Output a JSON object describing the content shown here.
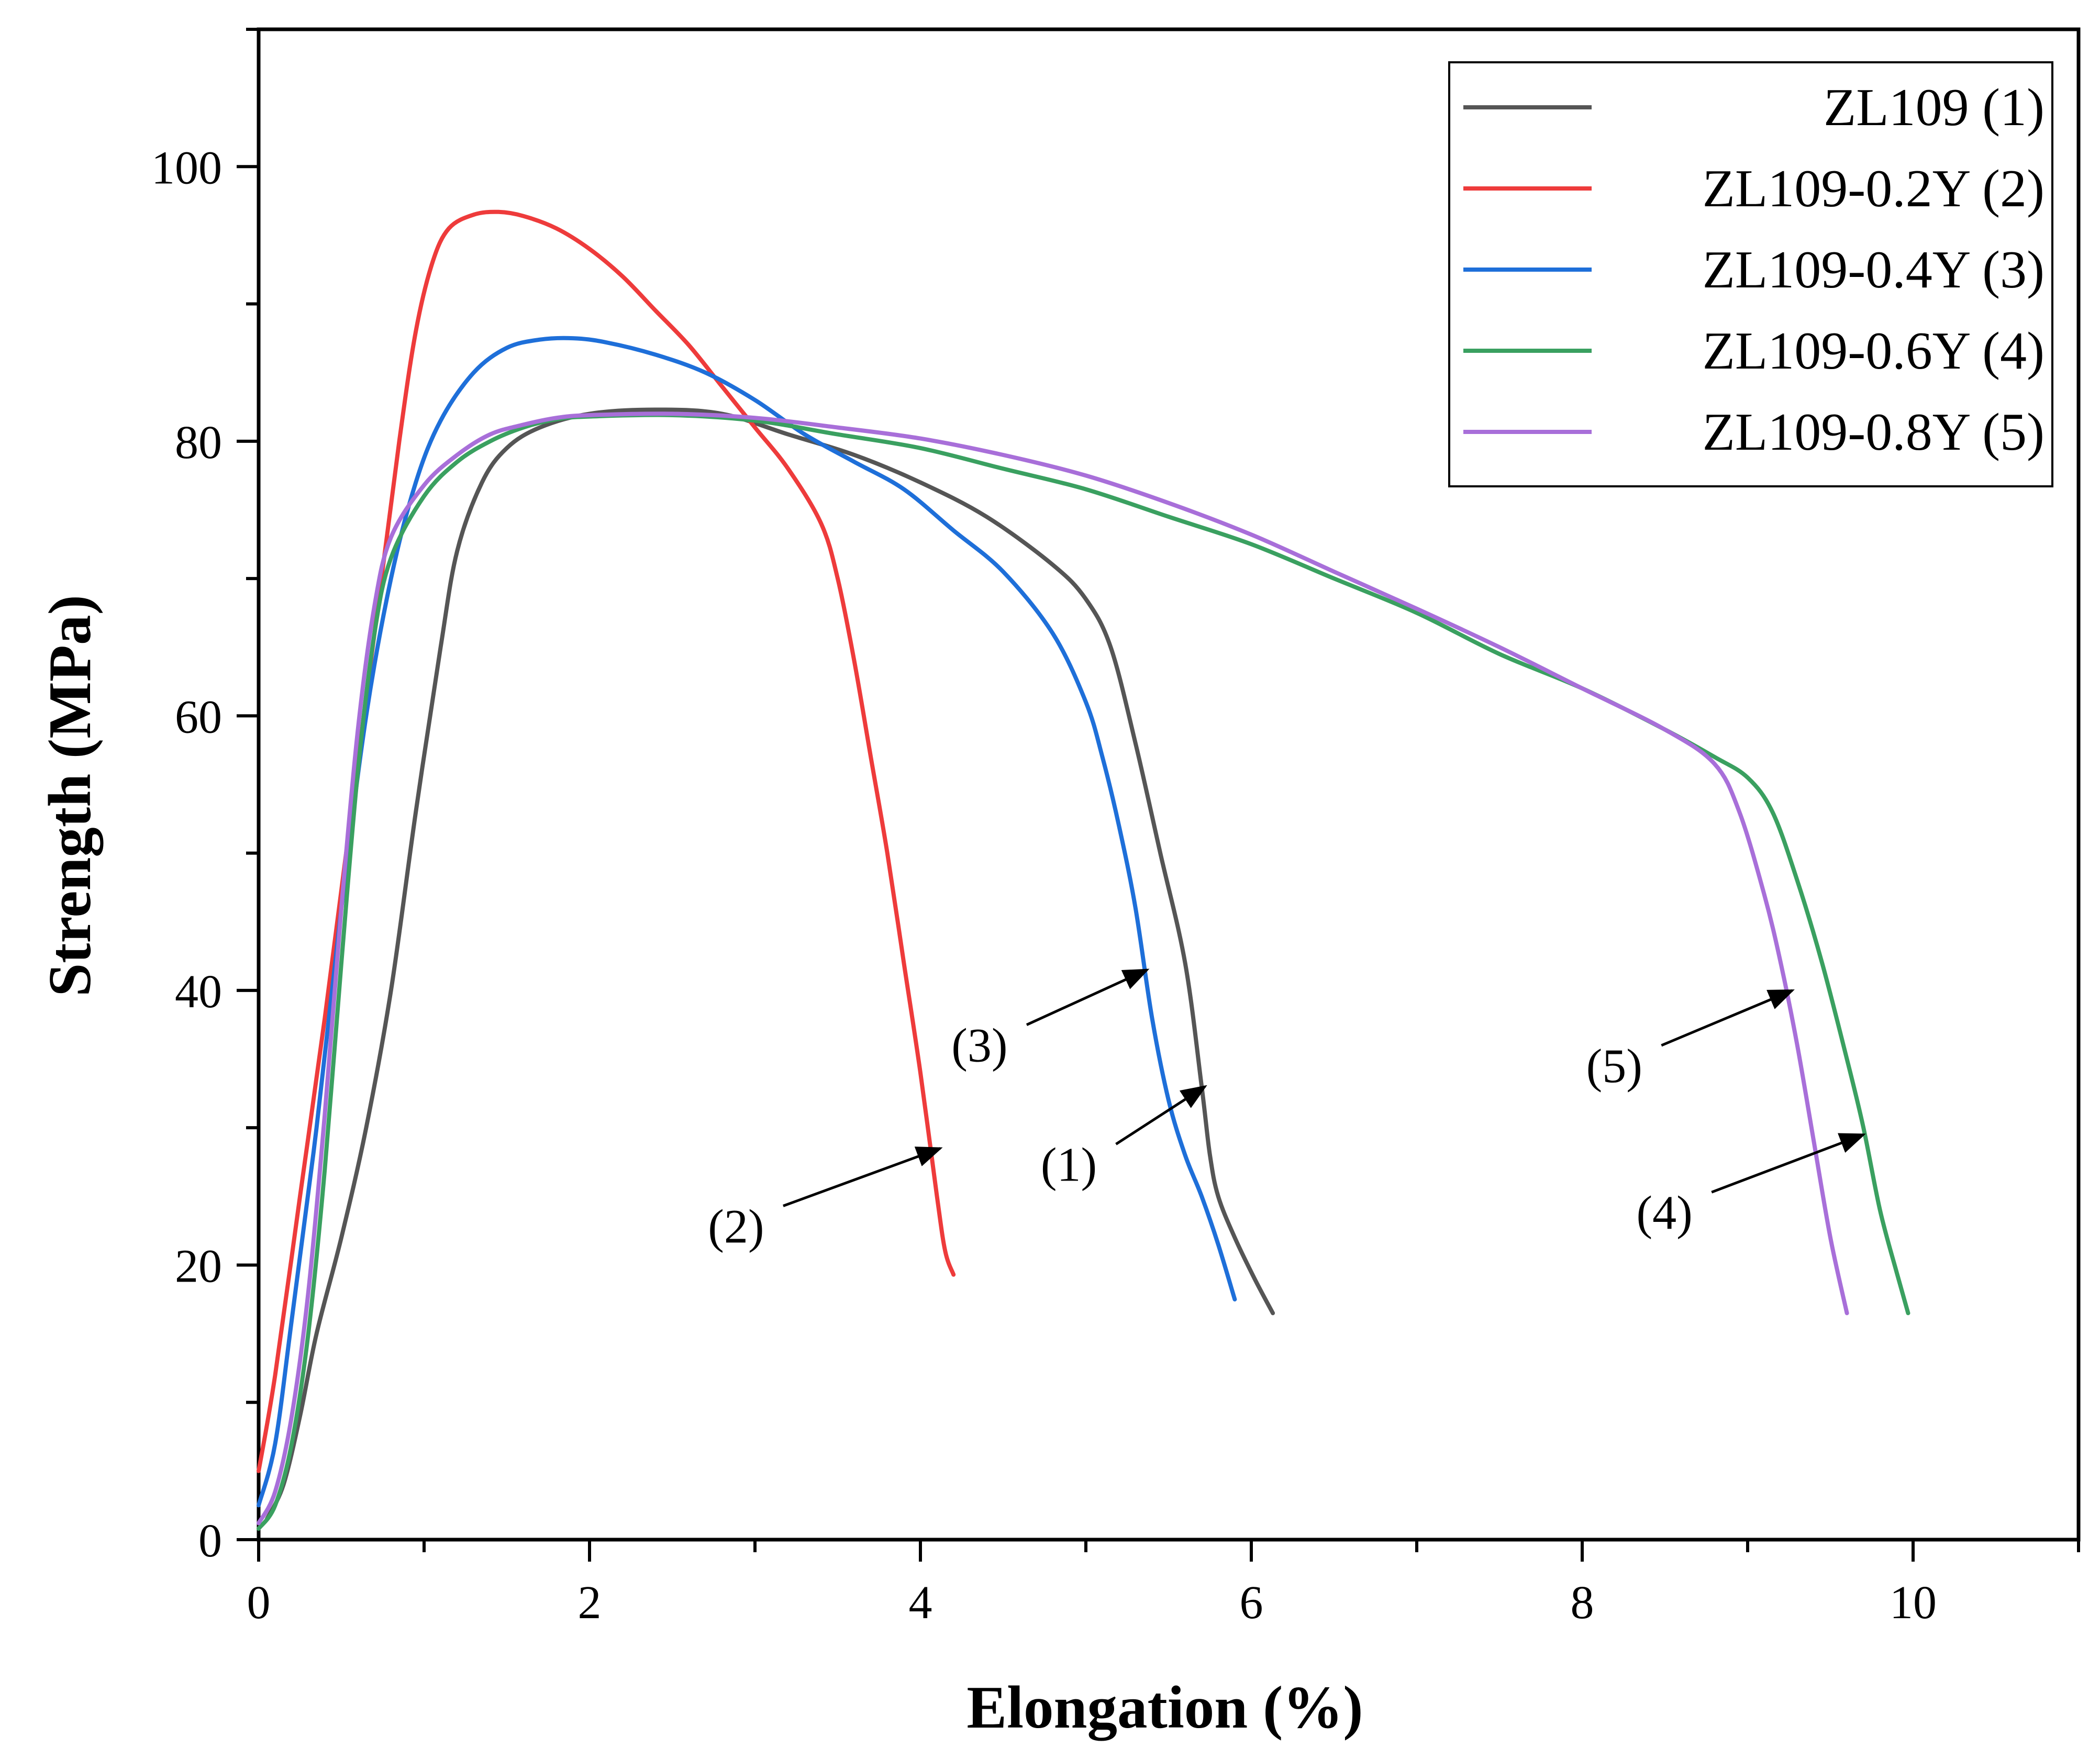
{
  "chart_data": {
    "type": "line",
    "title": "",
    "xlabel": "Elongation (%)",
    "ylabel": "Strength (MPa)",
    "xlim": [
      0,
      11
    ],
    "ylim": [
      0,
      110
    ],
    "x_ticks": [
      0,
      2,
      4,
      6,
      8,
      10
    ],
    "x_tick_labels": [
      "0",
      "2",
      "4",
      "6",
      "8",
      "10"
    ],
    "y_ticks": [
      0,
      20,
      40,
      60,
      80,
      100
    ],
    "y_tick_labels": [
      "0",
      "20",
      "40",
      "60",
      "80",
      "100"
    ],
    "grid": false,
    "legend_position": "top-right",
    "series": [
      {
        "name": "ZL109 (1)",
        "color": "#555555",
        "id": "s1",
        "points": [
          [
            0.05,
            1.5
          ],
          [
            0.15,
            4
          ],
          [
            0.25,
            9
          ],
          [
            0.35,
            15
          ],
          [
            0.5,
            22
          ],
          [
            0.65,
            30
          ],
          [
            0.8,
            40
          ],
          [
            0.95,
            53
          ],
          [
            1.1,
            65
          ],
          [
            1.2,
            72
          ],
          [
            1.35,
            77
          ],
          [
            1.5,
            79.5
          ],
          [
            1.7,
            81
          ],
          [
            2.0,
            82
          ],
          [
            2.4,
            82.3
          ],
          [
            2.8,
            82
          ],
          [
            3.2,
            80.5
          ],
          [
            3.6,
            79
          ],
          [
            4.0,
            77
          ],
          [
            4.4,
            74.5
          ],
          [
            4.8,
            71
          ],
          [
            5.0,
            68.5
          ],
          [
            5.15,
            65
          ],
          [
            5.3,
            58
          ],
          [
            5.45,
            50
          ],
          [
            5.6,
            42
          ],
          [
            5.7,
            33
          ],
          [
            5.75,
            28
          ],
          [
            5.8,
            25
          ],
          [
            5.9,
            22
          ],
          [
            6.02,
            19
          ],
          [
            6.13,
            16.5
          ]
        ]
      },
      {
        "name": "ZL109-0.2Y (2)",
        "color": "#ee3b3b",
        "id": "s2",
        "points": [
          [
            0.0,
            5
          ],
          [
            0.1,
            12
          ],
          [
            0.25,
            25
          ],
          [
            0.4,
            38
          ],
          [
            0.55,
            52
          ],
          [
            0.7,
            66
          ],
          [
            0.85,
            80
          ],
          [
            0.95,
            88
          ],
          [
            1.05,
            93
          ],
          [
            1.15,
            95.5
          ],
          [
            1.3,
            96.5
          ],
          [
            1.45,
            96.7
          ],
          [
            1.6,
            96.4
          ],
          [
            1.8,
            95.5
          ],
          [
            2.0,
            94
          ],
          [
            2.2,
            92
          ],
          [
            2.4,
            89.5
          ],
          [
            2.6,
            87
          ],
          [
            2.8,
            84
          ],
          [
            3.0,
            81
          ],
          [
            3.2,
            78
          ],
          [
            3.4,
            74
          ],
          [
            3.5,
            70
          ],
          [
            3.6,
            64
          ],
          [
            3.7,
            57
          ],
          [
            3.8,
            50
          ],
          [
            3.9,
            42
          ],
          [
            4.0,
            34
          ],
          [
            4.1,
            25
          ],
          [
            4.15,
            21
          ],
          [
            4.2,
            19.3
          ]
        ]
      },
      {
        "name": "ZL109-0.4Y (3)",
        "color": "#1e6fd9",
        "id": "s3",
        "points": [
          [
            0.0,
            2.5
          ],
          [
            0.1,
            7
          ],
          [
            0.2,
            16
          ],
          [
            0.35,
            30
          ],
          [
            0.5,
            46
          ],
          [
            0.65,
            60
          ],
          [
            0.8,
            70
          ],
          [
            0.95,
            77
          ],
          [
            1.1,
            81.5
          ],
          [
            1.3,
            85
          ],
          [
            1.5,
            86.8
          ],
          [
            1.7,
            87.4
          ],
          [
            1.9,
            87.5
          ],
          [
            2.1,
            87.2
          ],
          [
            2.4,
            86.3
          ],
          [
            2.7,
            85
          ],
          [
            3.0,
            83
          ],
          [
            3.3,
            80.5
          ],
          [
            3.6,
            78.5
          ],
          [
            3.9,
            76.5
          ],
          [
            4.2,
            73.5
          ],
          [
            4.5,
            70.5
          ],
          [
            4.8,
            66
          ],
          [
            5.0,
            61
          ],
          [
            5.1,
            57
          ],
          [
            5.2,
            52
          ],
          [
            5.3,
            46
          ],
          [
            5.4,
            38
          ],
          [
            5.5,
            32
          ],
          [
            5.6,
            28
          ],
          [
            5.7,
            25
          ],
          [
            5.8,
            21.5
          ],
          [
            5.9,
            17.5
          ]
        ]
      },
      {
        "name": "ZL109-0.6Y (4)",
        "color": "#3aa060",
        "id": "s4",
        "points": [
          [
            0.0,
            0.8
          ],
          [
            0.1,
            2.5
          ],
          [
            0.2,
            7
          ],
          [
            0.3,
            15
          ],
          [
            0.4,
            27
          ],
          [
            0.5,
            42
          ],
          [
            0.6,
            56
          ],
          [
            0.7,
            66
          ],
          [
            0.8,
            71.5
          ],
          [
            1.0,
            76
          ],
          [
            1.2,
            78.5
          ],
          [
            1.4,
            80
          ],
          [
            1.6,
            81
          ],
          [
            1.8,
            81.6
          ],
          [
            2.0,
            81.8
          ],
          [
            2.5,
            81.9
          ],
          [
            3.0,
            81.5
          ],
          [
            3.5,
            80.5
          ],
          [
            4.0,
            79.5
          ],
          [
            4.5,
            78
          ],
          [
            5.0,
            76.5
          ],
          [
            5.5,
            74.5
          ],
          [
            6.0,
            72.5
          ],
          [
            6.5,
            70
          ],
          [
            7.0,
            67.5
          ],
          [
            7.5,
            64.5
          ],
          [
            8.0,
            62
          ],
          [
            8.5,
            59
          ],
          [
            8.8,
            57
          ],
          [
            9.0,
            55.5
          ],
          [
            9.15,
            53
          ],
          [
            9.3,
            48
          ],
          [
            9.45,
            42
          ],
          [
            9.6,
            35
          ],
          [
            9.7,
            30
          ],
          [
            9.8,
            24
          ],
          [
            9.9,
            19.5
          ],
          [
            9.97,
            16.5
          ]
        ]
      },
      {
        "name": "ZL109-0.8Y (5)",
        "color": "#a86fd9",
        "id": "s5",
        "points": [
          [
            0.0,
            1.2
          ],
          [
            0.1,
            3.5
          ],
          [
            0.2,
            9
          ],
          [
            0.3,
            18
          ],
          [
            0.4,
            31
          ],
          [
            0.5,
            46
          ],
          [
            0.6,
            59
          ],
          [
            0.7,
            68
          ],
          [
            0.8,
            73
          ],
          [
            1.0,
            76.8
          ],
          [
            1.2,
            79
          ],
          [
            1.4,
            80.5
          ],
          [
            1.6,
            81.2
          ],
          [
            1.8,
            81.7
          ],
          [
            2.0,
            81.9
          ],
          [
            2.5,
            82
          ],
          [
            3.0,
            81.7
          ],
          [
            3.5,
            81
          ],
          [
            4.0,
            80.2
          ],
          [
            4.5,
            79
          ],
          [
            5.0,
            77.5
          ],
          [
            5.5,
            75.5
          ],
          [
            6.0,
            73.2
          ],
          [
            6.5,
            70.5
          ],
          [
            7.0,
            67.8
          ],
          [
            7.5,
            65
          ],
          [
            8.0,
            62
          ],
          [
            8.5,
            59
          ],
          [
            8.8,
            56.5
          ],
          [
            8.95,
            53
          ],
          [
            9.1,
            47
          ],
          [
            9.2,
            42
          ],
          [
            9.3,
            36
          ],
          [
            9.4,
            29
          ],
          [
            9.5,
            22
          ],
          [
            9.6,
            16.5
          ]
        ]
      }
    ],
    "annotations": [
      {
        "label": "(1)",
        "target": [
          5.72,
          33
        ]
      },
      {
        "label": "(2)",
        "target": [
          4.12,
          28.5
        ]
      },
      {
        "label": "(3)",
        "target": [
          5.37,
          41.5
        ]
      },
      {
        "label": "(4)",
        "target": [
          9.7,
          29.5
        ]
      },
      {
        "label": "(5)",
        "target": [
          9.27,
          40
        ]
      }
    ]
  }
}
